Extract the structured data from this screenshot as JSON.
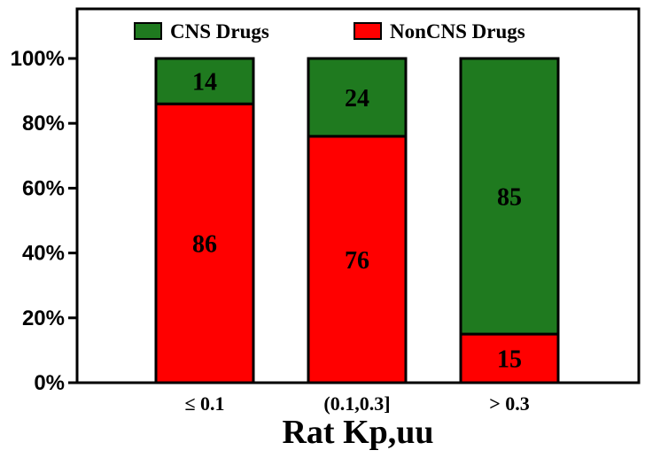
{
  "chart_data": {
    "type": "bar",
    "stacked": true,
    "categories": [
      "≤ 0.1",
      "(0.1,0.3]",
      "> 0.3"
    ],
    "series": [
      {
        "name": "NonCNS Drugs",
        "values": [
          86,
          76,
          15
        ],
        "color": "#ff0000"
      },
      {
        "name": "CNS Drugs",
        "values": [
          14,
          24,
          85
        ],
        "color": "#1f7a1f"
      }
    ],
    "legend_order": [
      "CNS Drugs",
      "NonCNS Drugs"
    ],
    "legend_position": "top",
    "xlabel": "Rat Kp,uu",
    "ylabel": "",
    "ylim": [
      0,
      100
    ],
    "yticks": [
      "0%",
      "20%",
      "40%",
      "60%",
      "80%",
      "100%"
    ],
    "ytick_values": [
      0,
      20,
      40,
      60,
      80,
      100
    ],
    "grid": false
  }
}
